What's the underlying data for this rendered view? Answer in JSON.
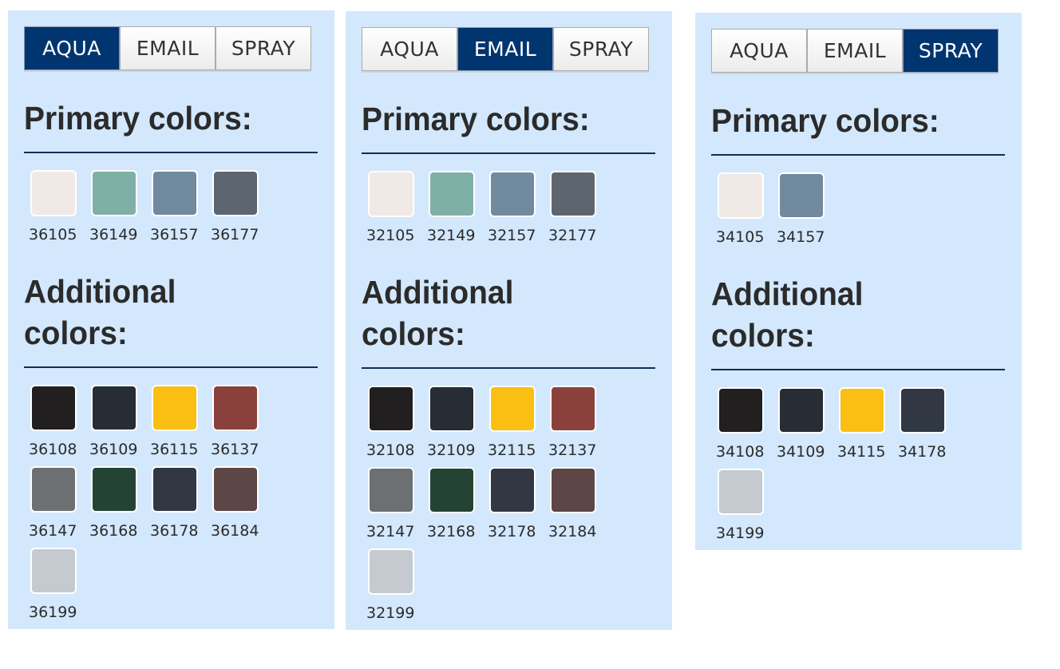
{
  "tabs": [
    "AQUA",
    "EMAIL",
    "SPRAY"
  ],
  "primary_heading": "Primary colors:",
  "additional_heading": "Additional colors:",
  "panels": [
    {
      "active": 0,
      "primary": [
        {
          "code": "36105",
          "color": "#f1e9e5"
        },
        {
          "code": "36149",
          "color": "#7fb0a8"
        },
        {
          "code": "36157",
          "color": "#728a9e"
        },
        {
          "code": "36177",
          "color": "#5d6670"
        }
      ],
      "additional": [
        {
          "code": "36108",
          "color": "#221f20"
        },
        {
          "code": "36109",
          "color": "#262d35"
        },
        {
          "code": "36115",
          "color": "#fbbe12"
        },
        {
          "code": "36137",
          "color": "#8b413b"
        },
        {
          "code": "36147",
          "color": "#6c7073"
        },
        {
          "code": "36168",
          "color": "#244334"
        },
        {
          "code": "36178",
          "color": "#313844"
        },
        {
          "code": "36184",
          "color": "#5c4646"
        },
        {
          "code": "36199",
          "color": "#c4cacf"
        }
      ]
    },
    {
      "active": 1,
      "primary": [
        {
          "code": "32105",
          "color": "#f1e9e5"
        },
        {
          "code": "32149",
          "color": "#7fb0a8"
        },
        {
          "code": "32157",
          "color": "#728a9e"
        },
        {
          "code": "32177",
          "color": "#5d6670"
        }
      ],
      "additional": [
        {
          "code": "32108",
          "color": "#221f20"
        },
        {
          "code": "32109",
          "color": "#262d35"
        },
        {
          "code": "32115",
          "color": "#fbbe12"
        },
        {
          "code": "32137",
          "color": "#8b413b"
        },
        {
          "code": "32147",
          "color": "#6c7073"
        },
        {
          "code": "32168",
          "color": "#244334"
        },
        {
          "code": "32178",
          "color": "#313844"
        },
        {
          "code": "32184",
          "color": "#5c4646"
        },
        {
          "code": "32199",
          "color": "#c4cacf"
        }
      ]
    },
    {
      "active": 2,
      "primary": [
        {
          "code": "34105",
          "color": "#f1e9e5"
        },
        {
          "code": "34157",
          "color": "#728a9e"
        }
      ],
      "additional": [
        {
          "code": "34108",
          "color": "#221f20"
        },
        {
          "code": "34109",
          "color": "#262d35"
        },
        {
          "code": "34115",
          "color": "#fbbe12"
        },
        {
          "code": "34178",
          "color": "#313844"
        },
        {
          "code": "34199",
          "color": "#c4cacf"
        }
      ]
    }
  ]
}
